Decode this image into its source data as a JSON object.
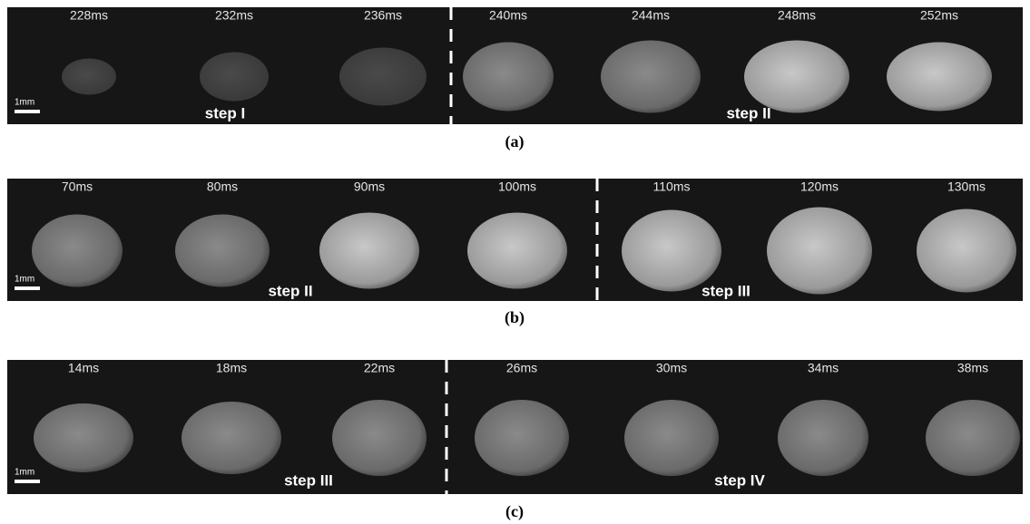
{
  "panels": [
    {
      "caption": "(a)",
      "scale": "1mm",
      "frames": [
        "228ms",
        "232ms",
        "236ms",
        "240ms",
        "244ms",
        "248ms",
        "252ms"
      ],
      "steps": [
        "step I",
        "step II"
      ]
    },
    {
      "caption": "(b)",
      "scale": "1mm",
      "frames": [
        "70ms",
        "80ms",
        "90ms",
        "100ms",
        "110ms",
        "120ms",
        "130ms"
      ],
      "steps": [
        "step II",
        "step III"
      ]
    },
    {
      "caption": "(c)",
      "scale": "1mm",
      "frames": [
        "14ms",
        "18ms",
        "22ms",
        "26ms",
        "30ms",
        "34ms",
        "38ms"
      ],
      "steps": [
        "step III",
        "step IV"
      ]
    }
  ]
}
